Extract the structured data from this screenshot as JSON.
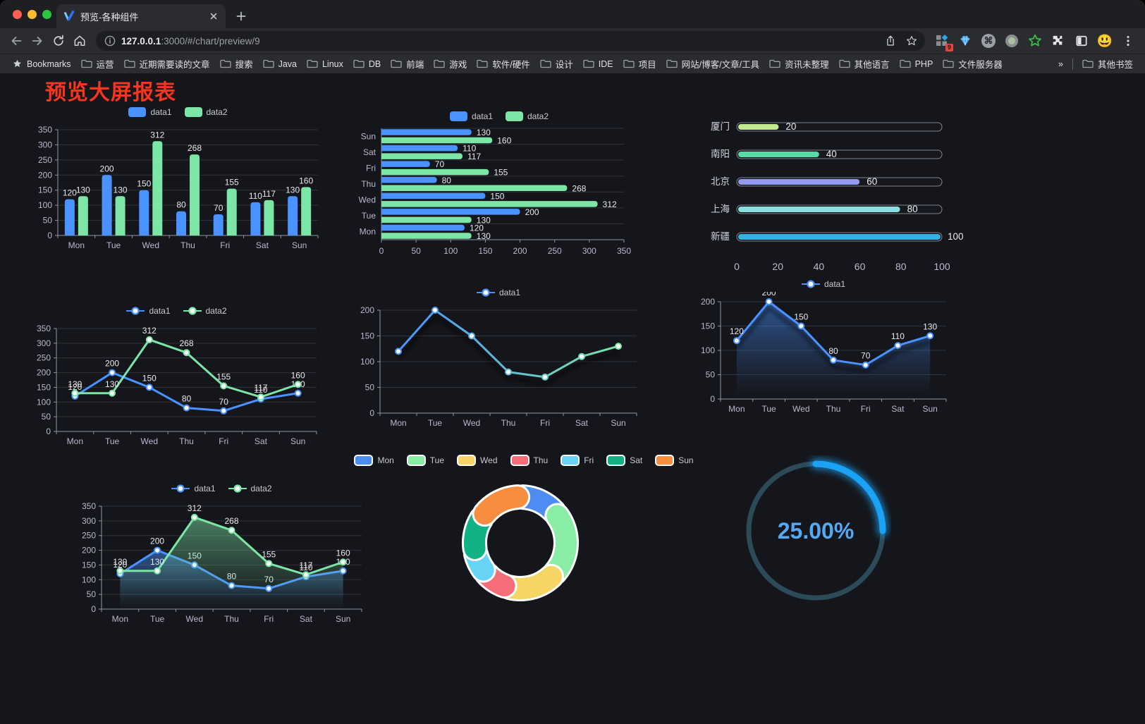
{
  "browser": {
    "tab_title": "预览-各种组件",
    "url_host": "127.0.0.1",
    "url_rest": ":3000/#/chart/preview/9",
    "ext_badge": "9",
    "cmd_glyph": "⌘",
    "profile_emoji": "😃",
    "bookmarks": [
      {
        "icon": "star",
        "label": "Bookmarks"
      },
      {
        "icon": "folder",
        "label": "运营"
      },
      {
        "icon": "folder",
        "label": "近期需要读的文章"
      },
      {
        "icon": "folder",
        "label": "搜索"
      },
      {
        "icon": "folder",
        "label": "Java"
      },
      {
        "icon": "folder",
        "label": "Linux"
      },
      {
        "icon": "folder",
        "label": "DB"
      },
      {
        "icon": "folder",
        "label": "前端"
      },
      {
        "icon": "folder",
        "label": "游戏"
      },
      {
        "icon": "folder",
        "label": "软件/硬件"
      },
      {
        "icon": "folder",
        "label": "设计"
      },
      {
        "icon": "folder",
        "label": "IDE"
      },
      {
        "icon": "folder",
        "label": "项目"
      },
      {
        "icon": "folder",
        "label": "网站/博客/文章/工具"
      },
      {
        "icon": "folder",
        "label": "资讯未整理"
      },
      {
        "icon": "folder",
        "label": "其他语言"
      },
      {
        "icon": "folder",
        "label": "PHP"
      },
      {
        "icon": "folder",
        "label": "文件服务器"
      },
      {
        "icon": "none",
        "label": "»",
        "spacer_before": true
      },
      {
        "icon": "folder",
        "label": "其他书签",
        "divider_before": true
      }
    ]
  },
  "page": {
    "title": "预览大屏报表"
  },
  "chart_data": [
    {
      "id": "bar-vertical",
      "type": "bar",
      "legend_icon": "rect",
      "labels": true,
      "categories": [
        "Mon",
        "Tue",
        "Wed",
        "Thu",
        "Fri",
        "Sat",
        "Sun"
      ],
      "series": [
        {
          "name": "data1",
          "color": "#4992ff",
          "values": [
            120,
            200,
            150,
            80,
            70,
            110,
            130
          ]
        },
        {
          "name": "data2",
          "color": "#7ce6a6",
          "values": [
            130,
            130,
            312,
            268,
            155,
            117,
            160
          ]
        }
      ],
      "ylim": [
        0,
        350
      ],
      "ystep": 50
    },
    {
      "id": "bar-horizontal",
      "type": "hbar",
      "legend_icon": "rect",
      "labels": true,
      "categories": [
        "Mon",
        "Tue",
        "Wed",
        "Thu",
        "Fri",
        "Sat",
        "Sun"
      ],
      "series": [
        {
          "name": "data1",
          "color": "#4992ff",
          "values": [
            120,
            200,
            150,
            80,
            70,
            110,
            130
          ]
        },
        {
          "name": "data2",
          "color": "#7ce6a6",
          "values": [
            130,
            130,
            312,
            268,
            155,
            117,
            160
          ]
        }
      ],
      "xlim": [
        0,
        350
      ],
      "xstep": 50
    },
    {
      "id": "progress",
      "type": "progress",
      "max": 100,
      "xticks": [
        0,
        20,
        40,
        60,
        80,
        100
      ],
      "items": [
        {
          "label": "厦门",
          "value": 20,
          "color": "#c3e88d"
        },
        {
          "label": "南阳",
          "value": 40,
          "color": "#58d9a6"
        },
        {
          "label": "北京",
          "value": 60,
          "color": "#9399ec"
        },
        {
          "label": "上海",
          "value": 80,
          "color": "#8adfe0"
        },
        {
          "label": "新疆",
          "value": 100,
          "color": "#33b3e4"
        }
      ]
    },
    {
      "id": "line-two",
      "type": "line",
      "legend_icon": "line",
      "labels": true,
      "categories": [
        "Mon",
        "Tue",
        "Wed",
        "Thu",
        "Fri",
        "Sat",
        "Sun"
      ],
      "series": [
        {
          "name": "data1",
          "color": "#4992ff",
          "values": [
            120,
            200,
            150,
            80,
            70,
            110,
            130
          ]
        },
        {
          "name": "data2",
          "color": "#7ce6a6",
          "values": [
            130,
            130,
            312,
            268,
            155,
            117,
            160
          ]
        }
      ],
      "ylim": [
        0,
        350
      ],
      "ystep": 50
    },
    {
      "id": "line-gradient",
      "type": "line",
      "legend_icon": "line",
      "labels": false,
      "shadow": true,
      "categories": [
        "Mon",
        "Tue",
        "Wed",
        "Thu",
        "Fri",
        "Sat",
        "Sun"
      ],
      "series": [
        {
          "name": "data1",
          "gradient": [
            "#4992ff",
            "#7ce6a6"
          ],
          "values": [
            120,
            200,
            150,
            80,
            70,
            110,
            130
          ]
        }
      ],
      "ylim": [
        0,
        200
      ],
      "ystep": 50
    },
    {
      "id": "area-single",
      "type": "line",
      "legend_icon": "line",
      "labels": true,
      "shadow": true,
      "categories": [
        "Mon",
        "Tue",
        "Wed",
        "Thu",
        "Fri",
        "Sat",
        "Sun"
      ],
      "series": [
        {
          "name": "data1",
          "color": "#4992ff",
          "values": [
            120,
            200,
            150,
            80,
            70,
            110,
            130
          ],
          "area": true
        }
      ],
      "ylim": [
        0,
        200
      ],
      "ystep": 50
    },
    {
      "id": "line-area-two",
      "type": "line",
      "legend_icon": "line",
      "labels": true,
      "categories": [
        "Mon",
        "Tue",
        "Wed",
        "Thu",
        "Fri",
        "Sat",
        "Sun"
      ],
      "series": [
        {
          "name": "data1",
          "color": "#4992ff",
          "values": [
            120,
            200,
            150,
            80,
            70,
            110,
            130
          ],
          "area": true
        },
        {
          "name": "data2",
          "color": "#7ce6a6",
          "values": [
            130,
            130,
            312,
            268,
            155,
            117,
            160
          ],
          "area": true
        }
      ],
      "ylim": [
        0,
        350
      ],
      "ystep": 50
    },
    {
      "id": "donut",
      "type": "pie",
      "legend_icon": "rect-bordered",
      "items": [
        {
          "label": "Mon",
          "value": 120,
          "color": "#4d8df2"
        },
        {
          "label": "Tue",
          "value": 200,
          "color": "#89eda5"
        },
        {
          "label": "Wed",
          "value": 150,
          "color": "#f5d664"
        },
        {
          "label": "Thu",
          "value": 80,
          "color": "#f66d7a"
        },
        {
          "label": "Fri",
          "value": 70,
          "color": "#67d4f5"
        },
        {
          "label": "Sat",
          "value": 110,
          "color": "#10b286"
        },
        {
          "label": "Sun",
          "value": 130,
          "color": "#f78d3f"
        }
      ]
    },
    {
      "id": "gauge",
      "type": "gauge",
      "value": 25,
      "text": "25.00%",
      "color": "#1ba2f5",
      "track": "#2c4a57",
      "text_color": "#55a9f2"
    }
  ]
}
